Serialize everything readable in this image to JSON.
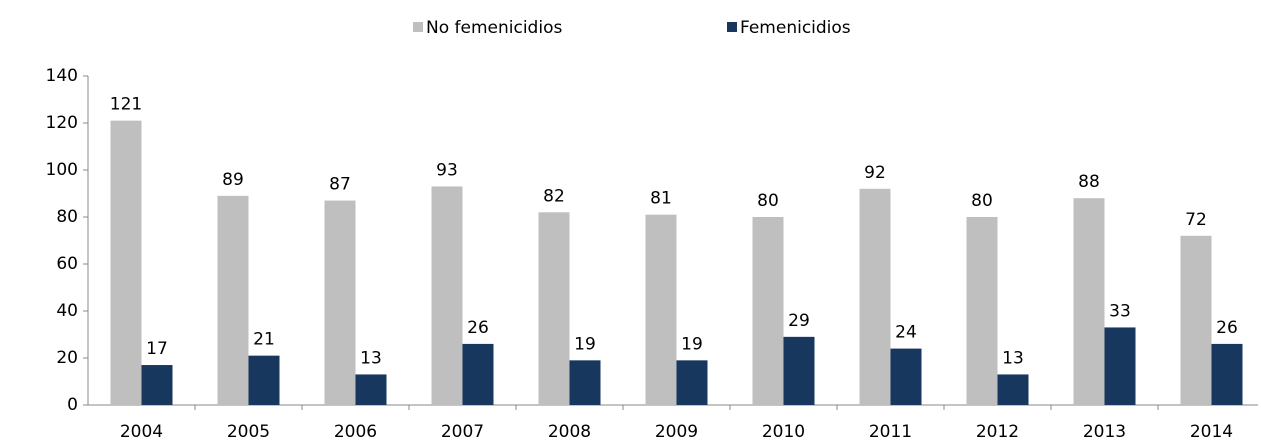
{
  "chart_data": {
    "type": "bar",
    "categories": [
      "2004",
      "2005",
      "2006",
      "2007",
      "2008",
      "2009",
      "2010",
      "2011",
      "2012",
      "2013",
      "2014"
    ],
    "series": [
      {
        "name": "No femenicidios",
        "color": "#bfbfbf",
        "values": [
          121,
          89,
          87,
          93,
          82,
          81,
          80,
          92,
          80,
          88,
          72
        ]
      },
      {
        "name": "Femenicidios",
        "color": "#17375e",
        "values": [
          17,
          21,
          13,
          26,
          19,
          19,
          29,
          24,
          13,
          33,
          26
        ]
      }
    ],
    "ylim": [
      0,
      140
    ],
    "yticks": [
      0,
      20,
      40,
      60,
      80,
      100,
      120,
      140
    ],
    "grid": false,
    "legend": "top"
  }
}
